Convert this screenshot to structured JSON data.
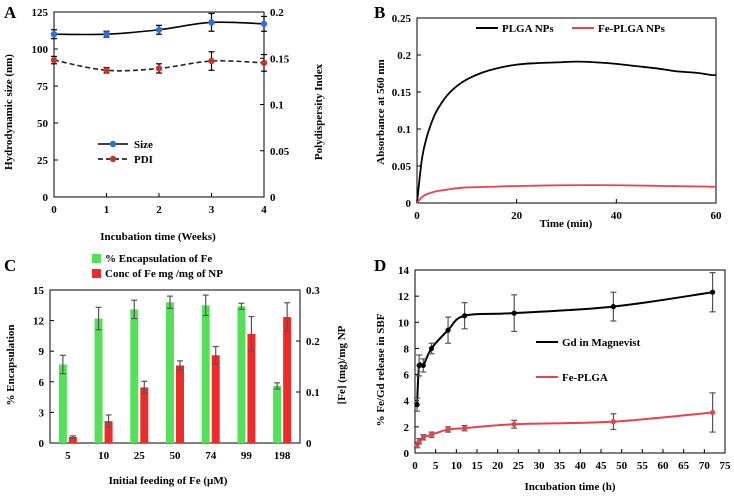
{
  "chart_data": [
    {
      "type": "line",
      "panel": "A",
      "xlabel": "Incubation time (Weeks)",
      "ylabel": "Hydrodynamic size (nm)",
      "y2label": "Polydispersity Index",
      "x": [
        0,
        1,
        2,
        3,
        4
      ],
      "xlim": [
        0,
        4
      ],
      "ylim": [
        0,
        125
      ],
      "y2lim": [
        0,
        0.2
      ],
      "xticks": [
        "0",
        "1",
        "2",
        "3",
        "4"
      ],
      "yticks": [
        "0",
        "25",
        "50",
        "75",
        "100",
        "125"
      ],
      "y2ticks": [
        "0",
        "0.05",
        "0.1",
        "0.15",
        "0.2"
      ],
      "series": [
        {
          "name": "Size",
          "axis": "left",
          "values": [
            110,
            110,
            113,
            118,
            117
          ],
          "errors": [
            3,
            2,
            3,
            6,
            5
          ],
          "color": "#2f6fd6",
          "style": "solid"
        },
        {
          "name": "PDI",
          "axis": "right",
          "values": [
            0.148,
            0.137,
            0.139,
            0.147,
            0.145
          ],
          "errors": [
            0.004,
            0.003,
            0.005,
            0.01,
            0.009
          ],
          "color": "#c0392b",
          "style": "dashed"
        }
      ],
      "legend": "bottom-left"
    },
    {
      "type": "line",
      "panel": "B",
      "xlabel": "Time (min)",
      "ylabel": "Absorbance at 560 nm",
      "xlim": [
        0,
        60
      ],
      "ylim": [
        0,
        0.25
      ],
      "xticks": [
        "0",
        "20",
        "40",
        "60"
      ],
      "yticks": [
        "0",
        "0.05",
        "0.1",
        "0.15",
        "0.2",
        "0.25"
      ],
      "series": [
        {
          "name": "PLGA NPs",
          "color": "#000000",
          "x": [
            0,
            1,
            2,
            3,
            4,
            6,
            8,
            10,
            13,
            16,
            20,
            24,
            28,
            32,
            36,
            40,
            44,
            48,
            52,
            56,
            59,
            60
          ],
          "values": [
            0,
            0.06,
            0.09,
            0.11,
            0.125,
            0.145,
            0.158,
            0.167,
            0.176,
            0.182,
            0.187,
            0.189,
            0.19,
            0.191,
            0.19,
            0.188,
            0.185,
            0.182,
            0.178,
            0.176,
            0.173,
            0.173
          ]
        },
        {
          "name": "Fe-PLGA NPs",
          "color": "#e8424c",
          "x": [
            0,
            1,
            2,
            4,
            6,
            8,
            10,
            15,
            20,
            30,
            40,
            50,
            60
          ],
          "values": [
            0,
            0.008,
            0.012,
            0.016,
            0.018,
            0.02,
            0.021,
            0.022,
            0.023,
            0.024,
            0.024,
            0.023,
            0.022
          ]
        }
      ],
      "legend": "top-right"
    },
    {
      "type": "bar",
      "panel": "C",
      "xlabel": "Initial feeding of Fe (µM)",
      "ylabel": "% Encapsulation",
      "y2label": "[Fe] (mg)/mg NP",
      "categories": [
        "5",
        "10",
        "25",
        "50",
        "74",
        "99",
        "198"
      ],
      "ylim": [
        0,
        15
      ],
      "y2lim": [
        0,
        0.3
      ],
      "yticks": [
        "0",
        "3",
        "6",
        "9",
        "12",
        "15"
      ],
      "y2ticks": [
        "0",
        "0.1",
        "0.2",
        "0.3"
      ],
      "series": [
        {
          "name": "% Encapsulation of Fe",
          "axis": "left",
          "color": "#55e05a",
          "values": [
            7.7,
            12.2,
            13.1,
            13.8,
            13.5,
            13.4,
            5.6
          ],
          "errors": [
            0.9,
            1.1,
            0.9,
            0.6,
            1.0,
            0.3,
            0.3
          ]
        },
        {
          "name": "Conc of Fe mg /mg of NP",
          "axis": "right",
          "color": "#ee2b2b",
          "values": [
            0.012,
            0.043,
            0.109,
            0.152,
            0.172,
            0.214,
            0.247
          ],
          "errors": [
            0.002,
            0.012,
            0.012,
            0.009,
            0.017,
            0.034,
            0.028
          ]
        }
      ],
      "legend": "top"
    },
    {
      "type": "line",
      "panel": "D",
      "xlabel": "Incubation time (h)",
      "ylabel": "% Fe/Gd release in SBF",
      "xlim": [
        0,
        75
      ],
      "ylim": [
        0,
        14
      ],
      "xticks": [
        "0",
        "5",
        "10",
        "15",
        "20",
        "25",
        "30",
        "35",
        "40",
        "45",
        "50",
        "55",
        "60",
        "65",
        "70",
        "75"
      ],
      "yticks": [
        "0",
        "2",
        "4",
        "6",
        "8",
        "10",
        "12",
        "14"
      ],
      "series": [
        {
          "name": "Gd in Magnevist",
          "color": "#000000",
          "x": [
            0.5,
            1,
            2,
            4,
            8,
            12,
            24,
            48,
            72
          ],
          "values": [
            3.7,
            6.7,
            6.7,
            8.0,
            9.4,
            10.5,
            10.7,
            11.2,
            12.3
          ],
          "errors": [
            0.5,
            0.8,
            0.5,
            0.4,
            1.0,
            1.0,
            1.4,
            1.1,
            1.5
          ]
        },
        {
          "name": "Fe-PLGA",
          "color": "#e8424c",
          "x": [
            0.5,
            1,
            2,
            4,
            8,
            12,
            24,
            48,
            72
          ],
          "values": [
            0.6,
            0.9,
            1.2,
            1.4,
            1.8,
            1.9,
            2.2,
            2.4,
            3.1
          ],
          "errors": [
            0.2,
            0.2,
            0.2,
            0.2,
            0.2,
            0.2,
            0.3,
            0.6,
            1.5
          ]
        }
      ],
      "legend": "center-right"
    }
  ]
}
